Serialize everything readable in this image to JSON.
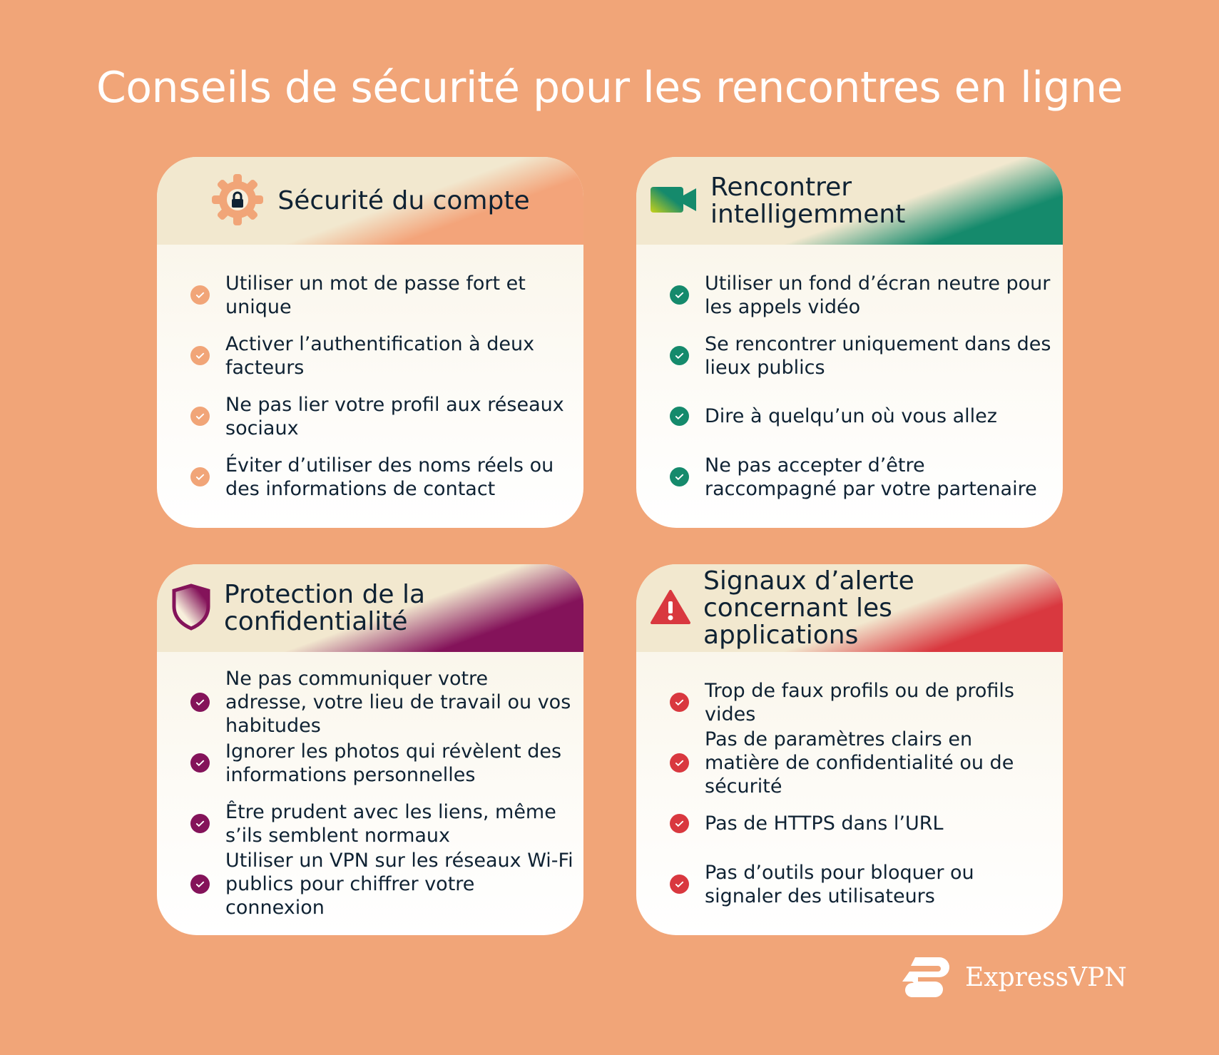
{
  "title": "Conseils de sécurité pour les rencontres en ligne",
  "colors": {
    "background": "#f1a578",
    "orange": "#f1a578",
    "green": "#158a6c",
    "purple": "#84135a",
    "red": "#d9383f"
  },
  "cards": [
    {
      "title": "Sécurité du compte",
      "icon": "gear-lock-icon",
      "items": [
        "Utiliser un mot de passe fort et unique",
        "Activer l’authentification à deux facteurs",
        "Ne pas lier votre profil aux réseaux sociaux",
        "Éviter d’utiliser des noms réels ou des informations de contact"
      ]
    },
    {
      "title": "Rencontrer intelligemment",
      "icon": "video-camera-icon",
      "items": [
        "Utiliser un fond d’écran neutre pour les appels vidéo",
        "Se rencontrer uniquement dans des lieux publics",
        "Dire à quelqu’un où vous allez",
        "Ne pas accepter d’être raccompagné par votre partenaire"
      ]
    },
    {
      "title": "Protection de la confidentialité",
      "icon": "shield-icon",
      "items": [
        "Ne pas communiquer votre adresse, votre lieu de travail ou vos habitudes",
        "Ignorer les photos qui révèlent des informations personnelles",
        "Être prudent avec les liens, même s’ils semblent normaux",
        "Utiliser un VPN sur les réseaux Wi-Fi publics pour chiffrer votre connexion"
      ]
    },
    {
      "title": "Signaux d’alerte concernant les applications",
      "icon": "warning-icon",
      "items": [
        "Trop de faux profils ou de profils vides",
        "Pas de paramètres clairs en matière de confidentialité ou de sécurité",
        "Pas de HTTPS dans l’URL",
        "Pas d’outils pour bloquer ou signaler des utilisateurs"
      ]
    }
  ],
  "brand": "ExpressVPN"
}
